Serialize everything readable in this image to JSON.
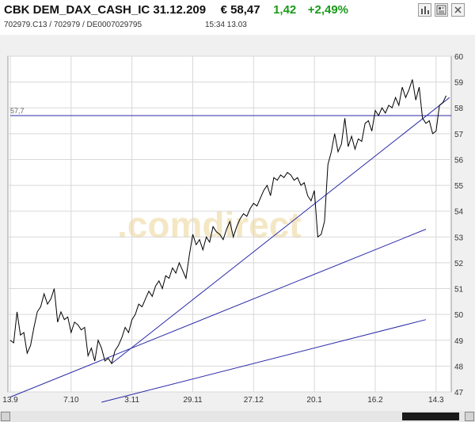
{
  "header": {
    "instrument": "CBK DEM_DAX_CASH_IC 31.12.209",
    "price": "€ 58,47",
    "change": "1,42",
    "change_pct": "+2,49%",
    "codes": "702979.C13  /  702979  /  DE0007029795",
    "time": "15:34   13.03",
    "colors": {
      "positive": "#1a9a1a",
      "text": "#111111"
    },
    "icons": [
      "bar-chart-icon",
      "news-icon",
      "close-icon"
    ]
  },
  "watermark": ".comdirect",
  "chart_data": {
    "type": "line",
    "x_tick_labels": [
      "13.9",
      "7.10",
      "3.11",
      "29.11",
      "27.12",
      "20.1",
      "16.2",
      "14.3"
    ],
    "x_tick_positions": [
      0,
      18,
      36,
      54,
      72,
      90,
      108,
      126
    ],
    "ylim": [
      47,
      60
    ],
    "y_ticks": [
      47,
      48,
      49,
      50,
      51,
      52,
      53,
      54,
      55,
      56,
      57,
      58,
      59,
      60
    ],
    "grid": true,
    "series": [
      {
        "x": [
          0,
          1,
          2,
          3,
          4,
          5,
          6,
          7,
          8,
          9,
          10,
          11,
          12,
          13,
          14,
          15,
          16,
          17,
          18,
          19,
          20,
          21,
          22,
          23,
          24,
          25,
          26,
          27,
          28,
          29,
          30,
          31,
          32,
          33,
          34,
          35,
          36,
          37,
          38,
          39,
          40,
          41,
          42,
          43,
          44,
          45,
          46,
          47,
          48,
          49,
          50,
          51,
          52,
          53,
          54,
          55,
          56,
          57,
          58,
          59,
          60,
          61,
          62,
          63,
          64,
          65,
          66,
          67,
          68,
          69,
          70,
          71,
          72,
          73,
          74,
          75,
          76,
          77,
          78,
          79,
          80,
          81,
          82,
          83,
          84,
          85,
          86,
          87,
          88,
          89,
          90,
          91,
          92,
          93,
          94,
          95,
          96,
          97,
          98,
          99,
          100,
          101,
          102,
          103,
          104,
          105,
          106,
          107,
          108,
          109,
          110,
          111,
          112,
          113,
          114,
          115,
          116,
          117,
          118,
          119,
          120,
          121,
          122,
          123,
          124,
          125,
          126,
          127,
          128,
          129
        ],
        "values": [
          49.0,
          48.9,
          50.1,
          49.2,
          49.3,
          48.5,
          48.8,
          49.5,
          50.1,
          50.3,
          50.8,
          50.4,
          50.6,
          51.0,
          49.7,
          50.1,
          49.8,
          49.9,
          49.3,
          49.7,
          49.6,
          49.4,
          49.5,
          48.4,
          48.7,
          48.2,
          49.0,
          48.7,
          48.2,
          48.3,
          48.1,
          48.6,
          48.8,
          49.1,
          49.5,
          49.3,
          49.8,
          50.0,
          50.4,
          50.3,
          50.6,
          50.9,
          50.7,
          51.1,
          51.3,
          51.0,
          51.5,
          51.4,
          51.8,
          51.6,
          52.0,
          51.7,
          51.4,
          52.3,
          53.1,
          52.7,
          52.9,
          52.5,
          53.0,
          52.8,
          53.4,
          53.2,
          53.1,
          52.9,
          53.3,
          53.6,
          53.0,
          53.4,
          53.7,
          53.9,
          53.8,
          54.1,
          54.3,
          54.2,
          54.5,
          54.8,
          55.0,
          54.6,
          55.3,
          55.2,
          55.4,
          55.3,
          55.5,
          55.4,
          55.2,
          55.3,
          55.0,
          55.1,
          54.6,
          54.4,
          54.8,
          53.0,
          53.1,
          53.6,
          55.8,
          56.3,
          57.0,
          56.3,
          56.6,
          57.6,
          56.5,
          56.9,
          56.4,
          56.8,
          56.7,
          57.4,
          57.5,
          57.1,
          57.9,
          57.7,
          58.0,
          57.8,
          58.1,
          58.0,
          58.4,
          58.1,
          58.8,
          58.4,
          58.7,
          59.1,
          58.3,
          58.8,
          57.6,
          57.4,
          57.5,
          57.0,
          57.1,
          58.1,
          58.2,
          58.47
        ]
      }
    ],
    "hline": {
      "value": 57.7,
      "label": "57,7"
    },
    "trendlines": [
      {
        "x1": 0,
        "y1": 46.8,
        "x2": 123,
        "y2": 53.3
      },
      {
        "x1": 30,
        "y1": 48.1,
        "x2": 130,
        "y2": 58.4
      },
      {
        "x1": 27,
        "y1": 46.6,
        "x2": 123,
        "y2": 49.8
      }
    ]
  }
}
